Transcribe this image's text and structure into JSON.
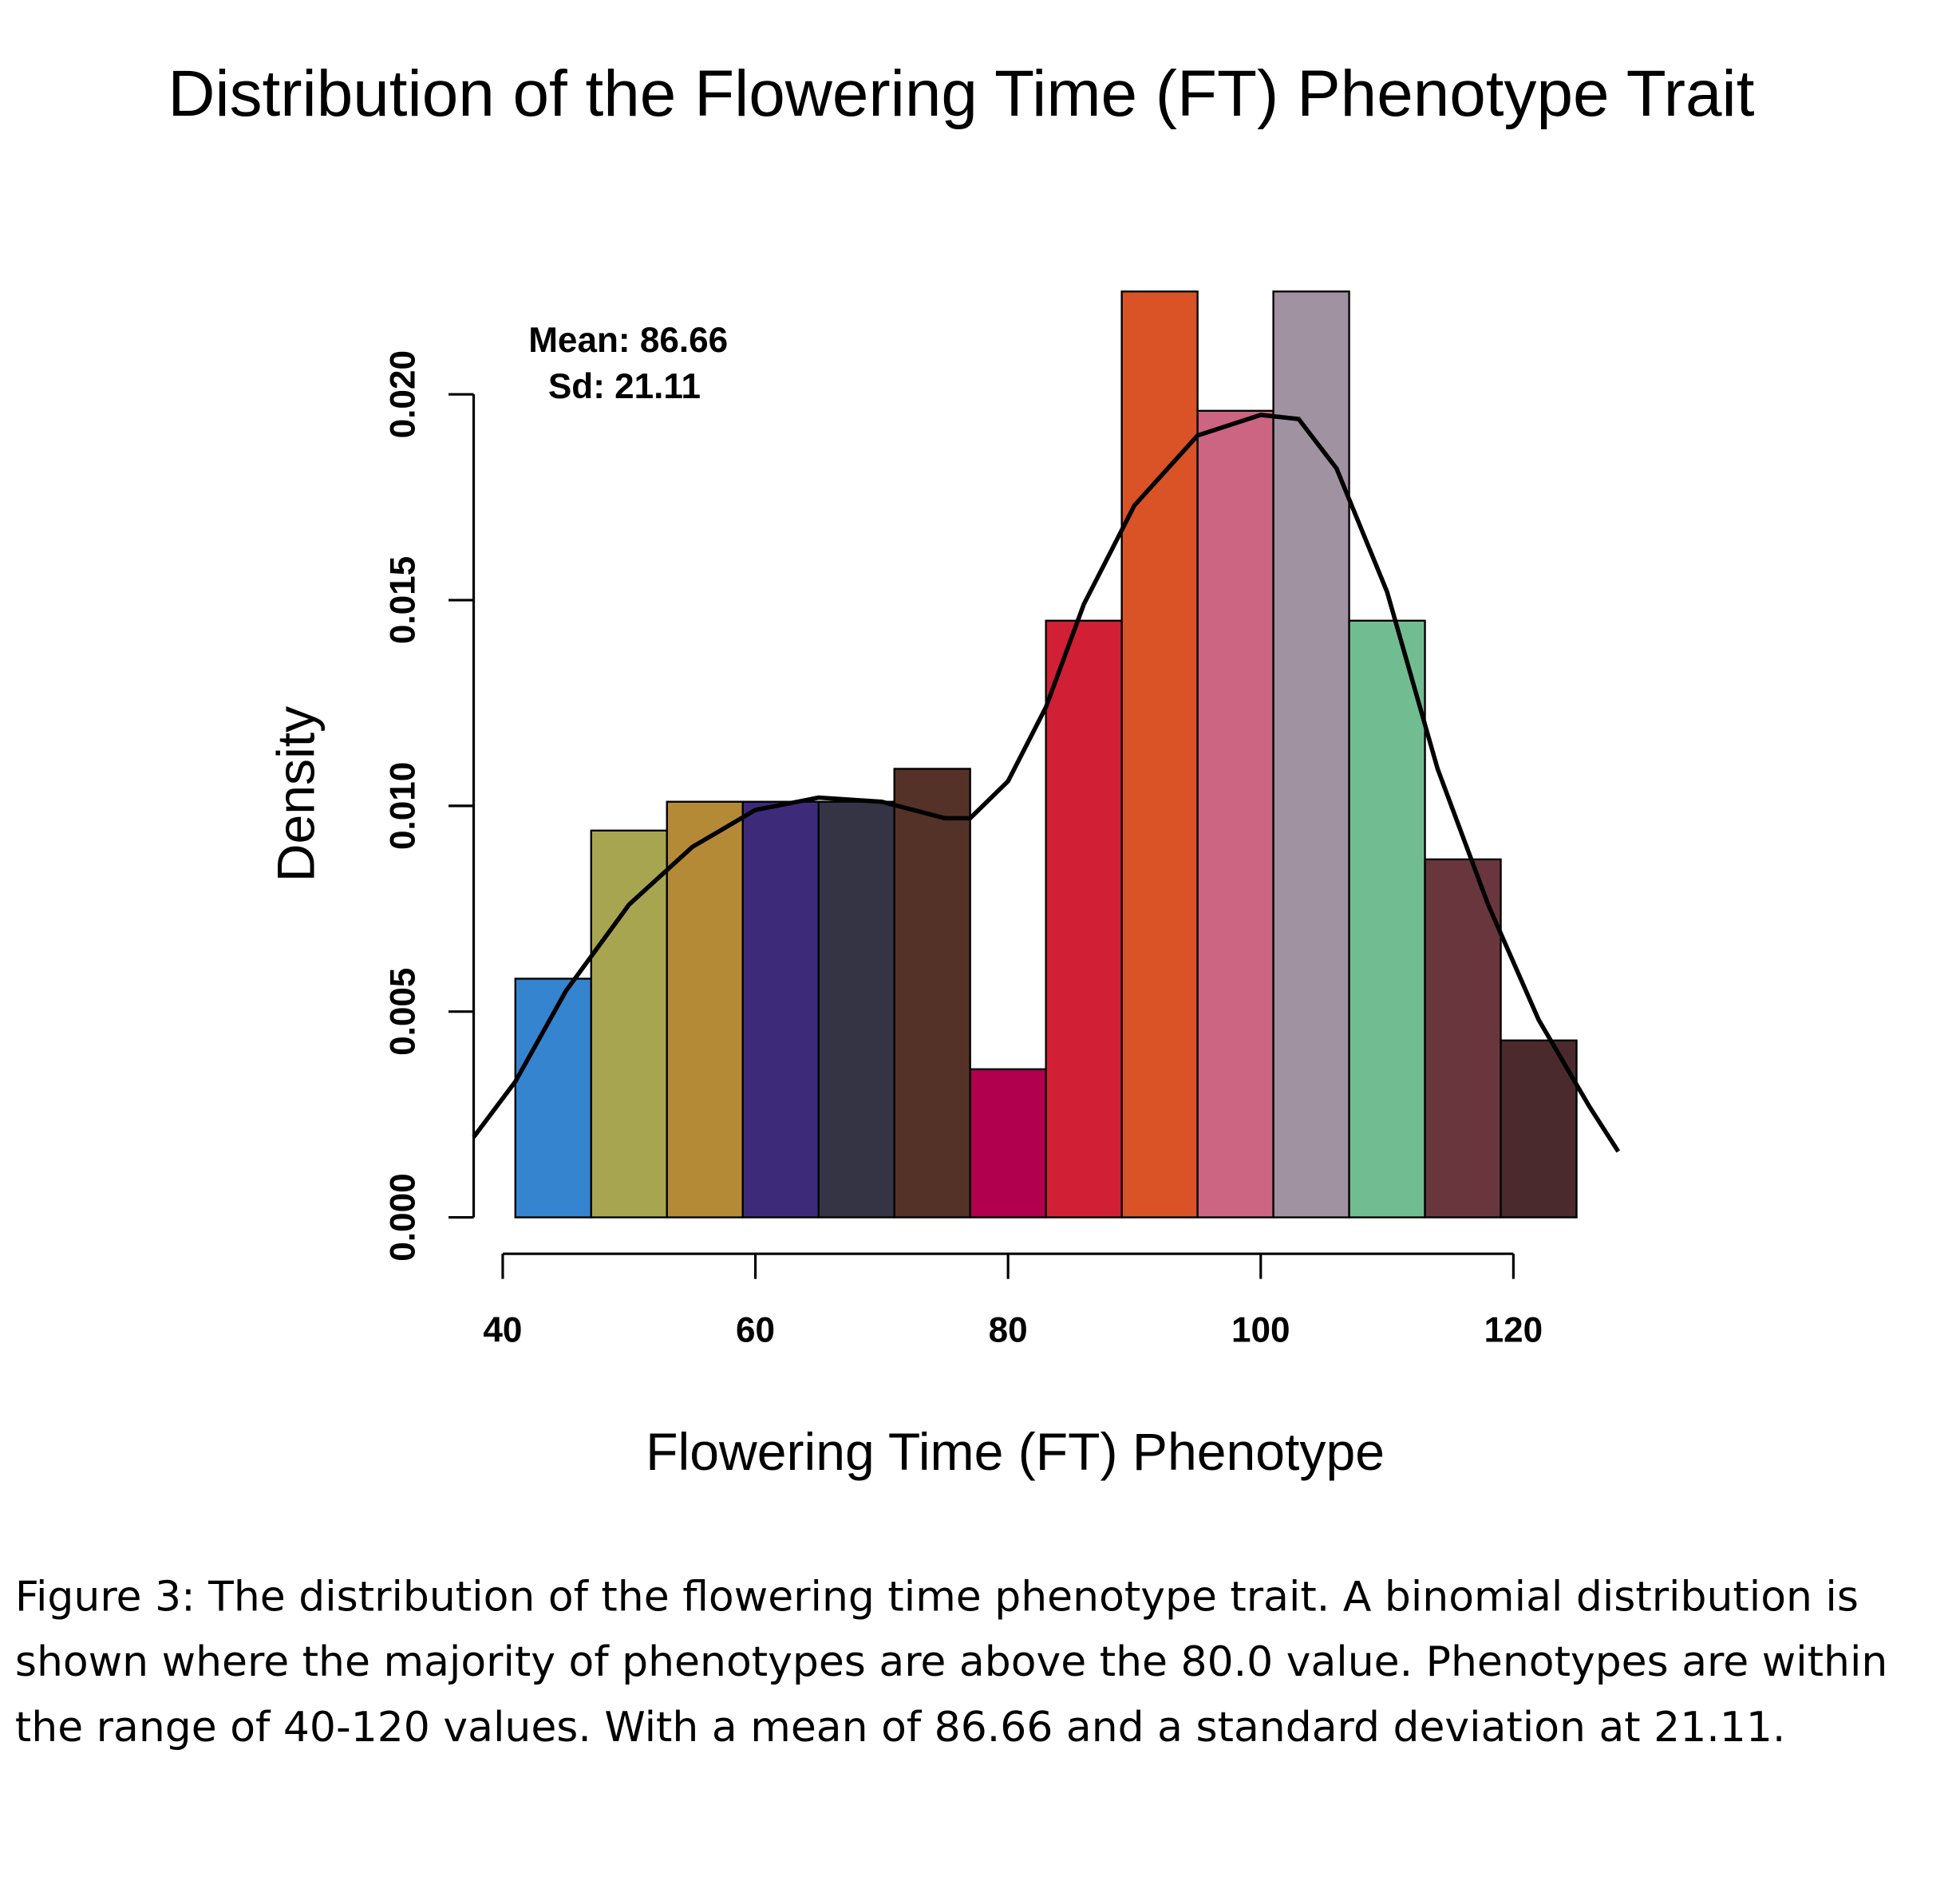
{
  "chart_data": {
    "type": "histogram",
    "title": "Distribution of the Flowering Time (FT) Phenotype Trait",
    "xlabel": "Flowering Time (FT) Phenotype",
    "ylabel": "Density",
    "annotations": [
      "Mean: 86.66",
      "Sd: 21.11"
    ],
    "bins": [
      41,
      47,
      53,
      59,
      65,
      71,
      77,
      83,
      89,
      95,
      101,
      107,
      113,
      119,
      125
    ],
    "values": [
      0.0058,
      0.0094,
      0.0101,
      0.0101,
      0.0101,
      0.0109,
      0.0036,
      0.0145,
      0.0225,
      0.0196,
      0.0225,
      0.0145,
      0.0087,
      0.0043
    ],
    "colors": [
      "#3584d0",
      "#a8a551",
      "#b58a36",
      "#3d2b7a",
      "#353444",
      "#553228",
      "#b0004e",
      "#d12035",
      "#d95326",
      "#cc6581",
      "#a192a2",
      "#71bd91",
      "#6a363d",
      "#4b2a2e"
    ],
    "curve": {
      "x": [
        37.7,
        41,
        45,
        50,
        55,
        60,
        65,
        70,
        75,
        77,
        80,
        83,
        86,
        90,
        95,
        100,
        103,
        106,
        110,
        114,
        118,
        122,
        126,
        128.3
      ],
      "y": [
        0.00195,
        0.0033,
        0.0055,
        0.0076,
        0.009,
        0.0099,
        0.0102,
        0.0101,
        0.0097,
        0.0097,
        0.0106,
        0.0124,
        0.0149,
        0.0173,
        0.019,
        0.0195,
        0.0194,
        0.0182,
        0.0152,
        0.0109,
        0.0076,
        0.0048,
        0.0027,
        0.0016
      ],
      "color": "#000000"
    },
    "xlim": [
      37.7,
      128.3
    ],
    "ylim": [
      0,
      0.0225
    ],
    "xticks": [
      40,
      60,
      80,
      100,
      120
    ],
    "yticks": [
      {
        "value": 0,
        "label": "0.000"
      },
      {
        "value": 0.005,
        "label": "0.005"
      },
      {
        "value": 0.01,
        "label": "0.010"
      },
      {
        "value": 0.015,
        "label": "0.015"
      },
      {
        "value": 0.02,
        "label": "0.020"
      }
    ],
    "caption": "Figure 3: The distribution of the flowering time phenotype trait. A binomial distribution is shown where the majority of phenotypes are above the 80.0 value. Phenotypes are within the range of 40-120 values. With a mean of 86.66 and a standard deviation at 21.11."
  }
}
